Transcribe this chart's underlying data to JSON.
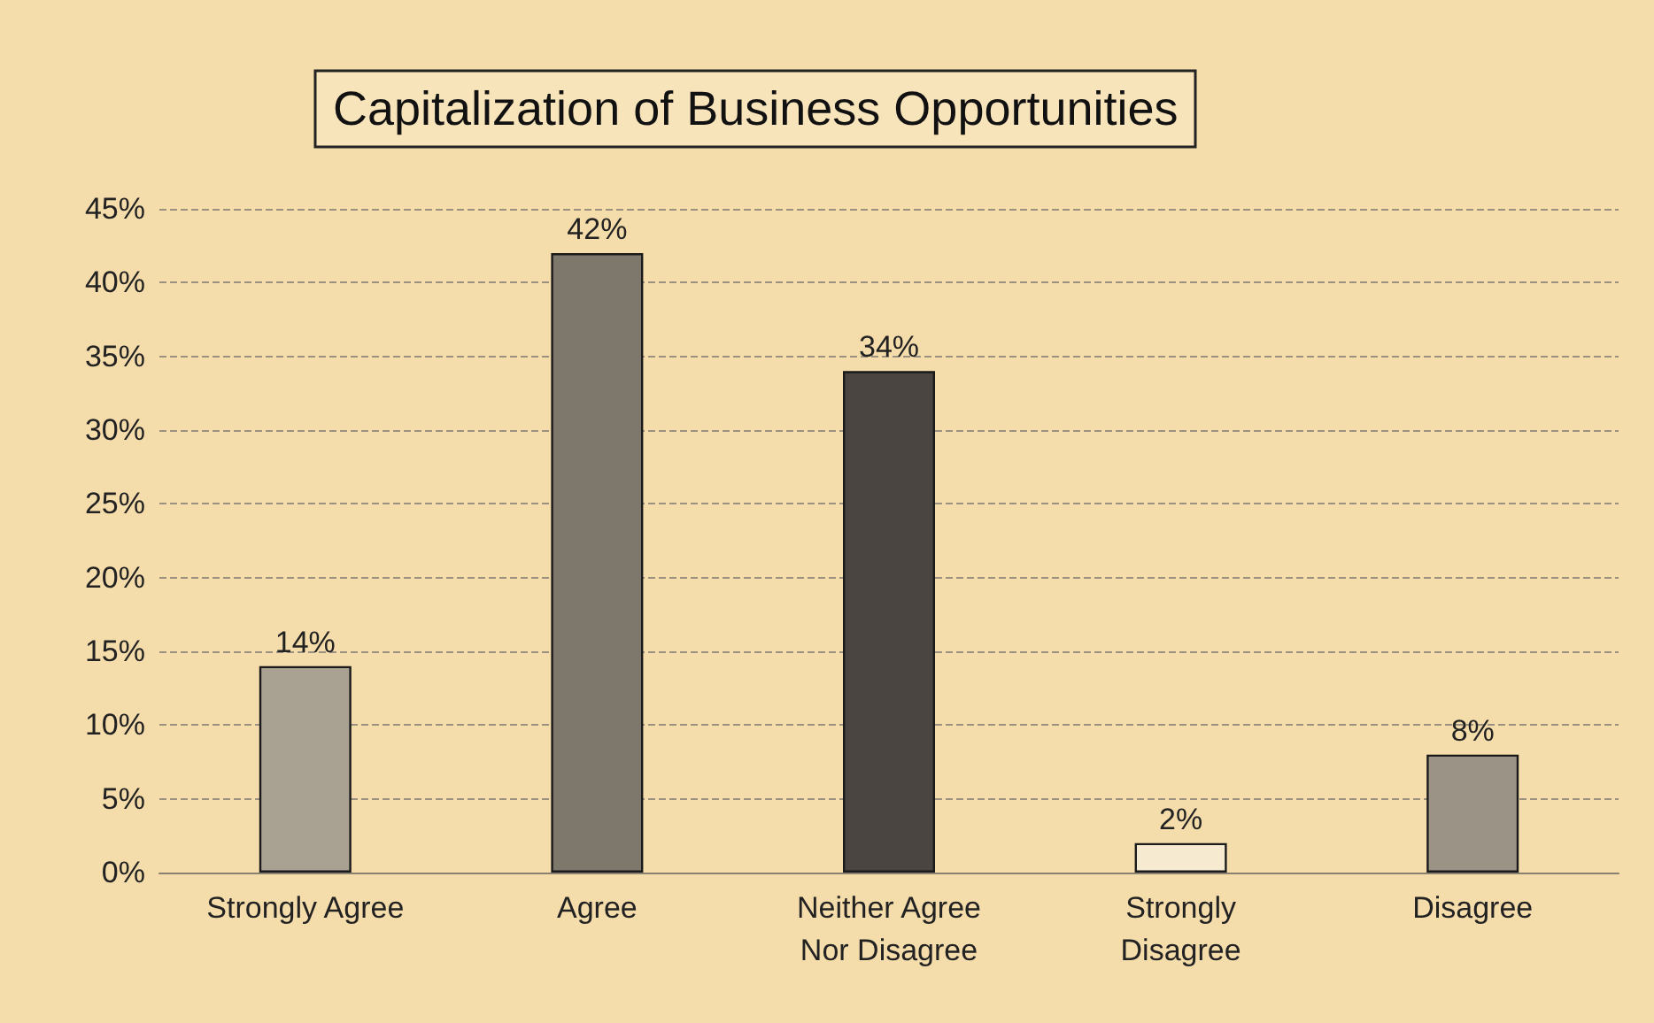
{
  "chart_data": {
    "type": "bar",
    "title": "Capitalization of Business Opportunities",
    "categories": [
      "Strongly Agree",
      "Agree",
      "Neither Agree\nNor Disagree",
      "Strongly\nDisagree",
      "Disagree"
    ],
    "values": [
      14,
      42,
      34,
      2,
      8
    ],
    "colors": [
      "#a9a192",
      "#7e776c",
      "#4a4541",
      "#f6ead0",
      "#9b9385"
    ],
    "value_labels": [
      "14%",
      "42%",
      "34%",
      "2%",
      "8%"
    ],
    "ylim": [
      0,
      45
    ],
    "yticks": [
      {
        "value": 0,
        "label": "0%"
      },
      {
        "value": 5,
        "label": "5%"
      },
      {
        "value": 10,
        "label": "10%"
      },
      {
        "value": 15,
        "label": "15%"
      },
      {
        "value": 20,
        "label": "20%"
      },
      {
        "value": 25,
        "label": "25%"
      },
      {
        "value": 30,
        "label": "30%"
      },
      {
        "value": 35,
        "label": "35%"
      },
      {
        "value": 40,
        "label": "40%"
      },
      {
        "value": 45,
        "label": "45%"
      }
    ],
    "grid": "y"
  }
}
